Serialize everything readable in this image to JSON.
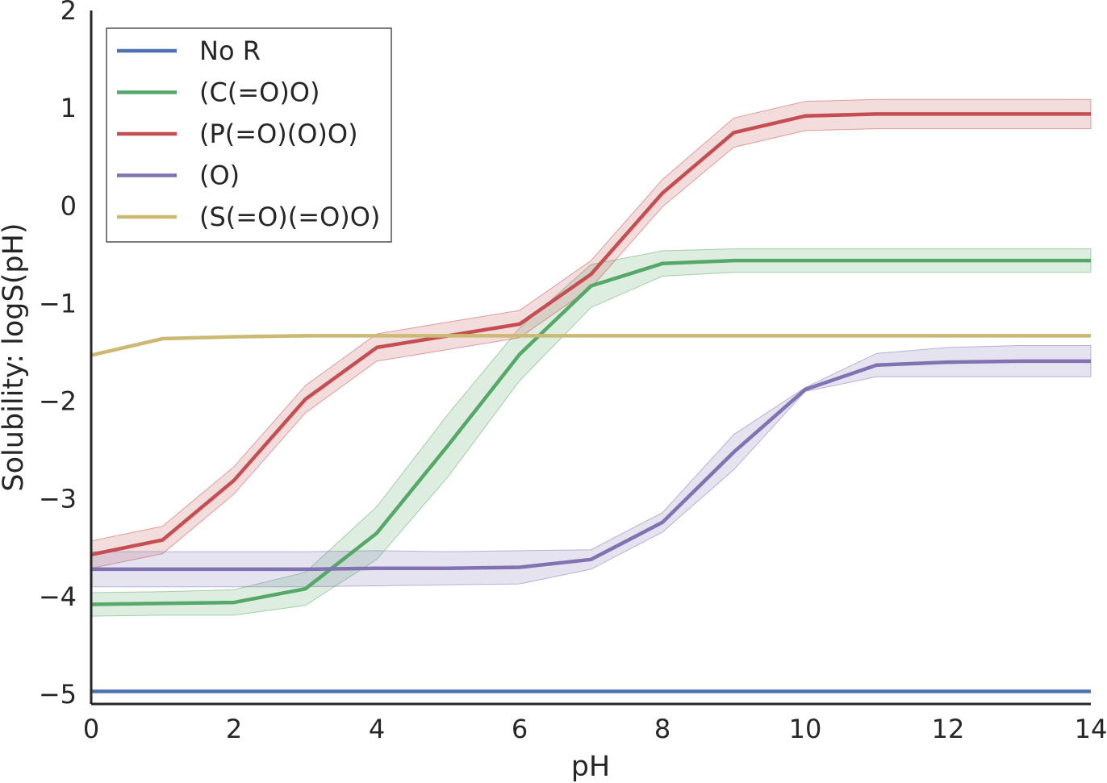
{
  "chart_data": {
    "type": "line",
    "title": "",
    "xlabel": "pH",
    "ylabel": "Solubility: logS(pH)",
    "xlim": [
      0,
      14
    ],
    "ylim": [
      -5,
      2
    ],
    "xticks": [
      0,
      2,
      4,
      6,
      8,
      10,
      12,
      14
    ],
    "yticks": [
      -5,
      -4,
      -3,
      -2,
      -1,
      0,
      1,
      2
    ],
    "xtick_labels": [
      "0",
      "2",
      "4",
      "6",
      "8",
      "10",
      "12",
      "14"
    ],
    "ytick_labels": [
      "−5",
      "−4",
      "−3",
      "−2",
      "−1",
      "0",
      "1",
      "2"
    ],
    "grid": false,
    "legend_position": "top-left",
    "x": [
      0,
      1,
      2,
      3,
      4,
      5,
      6,
      7,
      8,
      9,
      10,
      11,
      12,
      13,
      14
    ],
    "series": [
      {
        "name": "No R",
        "color": "#4c72b0",
        "values": [
          -4.97,
          -4.97,
          -4.97,
          -4.97,
          -4.97,
          -4.97,
          -4.97,
          -4.97,
          -4.97,
          -4.97,
          -4.97,
          -4.97,
          -4.97,
          -4.97,
          -4.97
        ],
        "band": null
      },
      {
        "name": "(C(=O)O)",
        "color": "#55a868",
        "values": [
          -4.08,
          -4.07,
          -4.06,
          -3.92,
          -3.35,
          -2.45,
          -1.52,
          -0.82,
          -0.59,
          -0.56,
          -0.56,
          -0.56,
          -0.56,
          -0.56,
          -0.56
        ],
        "band": [
          0.12,
          0.12,
          0.13,
          0.17,
          0.27,
          0.32,
          0.27,
          0.22,
          0.13,
          0.12,
          0.12,
          0.12,
          0.12,
          0.12,
          0.12
        ]
      },
      {
        "name": "(P(=O)(O)O)",
        "color": "#c44e52",
        "values": [
          -3.57,
          -3.42,
          -2.81,
          -1.98,
          -1.45,
          -1.33,
          -1.21,
          -0.7,
          0.13,
          0.75,
          0.92,
          0.94,
          0.94,
          0.94,
          0.94
        ],
        "band": [
          0.14,
          0.14,
          0.14,
          0.14,
          0.14,
          0.14,
          0.14,
          0.14,
          0.14,
          0.15,
          0.15,
          0.15,
          0.15,
          0.15,
          0.15
        ]
      },
      {
        "name": "(O)",
        "color": "#8172b2",
        "values": [
          -3.72,
          -3.72,
          -3.72,
          -3.72,
          -3.71,
          -3.71,
          -3.7,
          -3.62,
          -3.24,
          -2.52,
          -1.88,
          -1.63,
          -1.6,
          -1.59,
          -1.59
        ],
        "band": [
          0.18,
          0.18,
          0.18,
          0.18,
          0.18,
          0.17,
          0.17,
          0.1,
          0.1,
          0.18,
          0.02,
          0.12,
          0.15,
          0.16,
          0.16
        ]
      },
      {
        "name": "(S(=O)(=O)O)",
        "color": "#ccb974",
        "values": [
          -1.53,
          -1.36,
          -1.34,
          -1.33,
          -1.33,
          -1.33,
          -1.33,
          -1.33,
          -1.33,
          -1.33,
          -1.33,
          -1.33,
          -1.33,
          -1.33,
          -1.33
        ],
        "band": null
      }
    ]
  }
}
